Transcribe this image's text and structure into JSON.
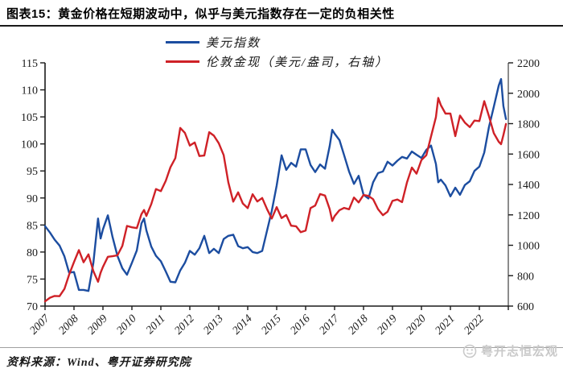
{
  "header": {
    "title": "图表15：黄金价格在短期波动中，似乎与美元指数存在一定的负相关性"
  },
  "footer": {
    "source": "资料来源：Wind、粤开证券研究院"
  },
  "watermark": {
    "text": "粤开志恒宏观"
  },
  "colors": {
    "dxy_blue": "#1c4da0",
    "gold_red": "#cf2127",
    "axis_black": "#1a1a1a",
    "watermark_gray": "#c9c9c9"
  },
  "chart_data": {
    "type": "line",
    "title": "图表15：黄金价格在短期波动中，似乎与美元指数存在一定的负相关性",
    "grid": false,
    "legend_position": "top",
    "x_range": [
      2007,
      2023
    ],
    "x_ticks": [
      2007,
      2008,
      2009,
      2010,
      2011,
      2012,
      2013,
      2014,
      2015,
      2016,
      2017,
      2018,
      2019,
      2020,
      2021,
      2022
    ],
    "x_tick_labels": [
      "2007",
      "2008",
      "2009",
      "2010",
      "2011",
      "2012",
      "2013",
      "2014",
      "2015",
      "2016",
      "2017",
      "2018",
      "2019",
      "2020",
      "2021",
      "2022"
    ],
    "left_axis": {
      "min": 70,
      "max": 115,
      "step": 5,
      "ticks": [
        70,
        75,
        80,
        85,
        90,
        95,
        100,
        105,
        110,
        115
      ]
    },
    "right_axis": {
      "min": 600,
      "max": 2200,
      "step": 200,
      "ticks": [
        600,
        800,
        1000,
        1200,
        1400,
        1600,
        1800,
        2000,
        2200
      ]
    },
    "x": [
      2007,
      2007.17,
      2007.33,
      2007.5,
      2007.67,
      2007.83,
      2008,
      2008.17,
      2008.33,
      2008.5,
      2008.67,
      2008.83,
      2008.92,
      2009,
      2009.17,
      2009.33,
      2009.5,
      2009.67,
      2009.83,
      2010,
      2010.17,
      2010.33,
      2010.42,
      2010.5,
      2010.67,
      2010.83,
      2011,
      2011.17,
      2011.33,
      2011.5,
      2011.67,
      2011.83,
      2012,
      2012.17,
      2012.33,
      2012.5,
      2012.67,
      2012.83,
      2013,
      2013.17,
      2013.33,
      2013.5,
      2013.67,
      2013.83,
      2014,
      2014.17,
      2014.33,
      2014.5,
      2014.67,
      2014.83,
      2015,
      2015.17,
      2015.33,
      2015.5,
      2015.67,
      2015.83,
      2016,
      2016.17,
      2016.33,
      2016.5,
      2016.67,
      2016.83,
      2016.92,
      2017,
      2017.17,
      2017.33,
      2017.5,
      2017.67,
      2017.83,
      2018,
      2018.17,
      2018.33,
      2018.5,
      2018.67,
      2018.83,
      2019,
      2019.17,
      2019.33,
      2019.5,
      2019.67,
      2019.83,
      2020,
      2020.17,
      2020.33,
      2020.5,
      2020.58,
      2020.67,
      2020.83,
      2021,
      2021.17,
      2021.33,
      2021.5,
      2021.67,
      2021.83,
      2022,
      2022.17,
      2022.33,
      2022.5,
      2022.67,
      2022.75,
      2022.83,
      2022.92
    ],
    "series": [
      {
        "name": "美元指数",
        "axis": "left",
        "color": "#1c4da0",
        "values": [
          84.8,
          83.6,
          82.3,
          81.2,
          79.2,
          76.2,
          76.3,
          73.0,
          73.0,
          72.8,
          78.0,
          86.2,
          82.5,
          84.2,
          86.8,
          82.8,
          79.3,
          77.0,
          75.8,
          78.0,
          80.3,
          85.3,
          86.2,
          84.0,
          81.0,
          79.3,
          78.3,
          76.4,
          74.5,
          74.4,
          76.6,
          78.0,
          80.2,
          79.5,
          80.7,
          83.0,
          79.8,
          80.6,
          79.8,
          82.4,
          83.0,
          83.2,
          81.1,
          80.7,
          80.9,
          80.0,
          79.8,
          80.2,
          84.0,
          87.6,
          92.3,
          97.9,
          95.2,
          96.5,
          95.8,
          99.0,
          99.0,
          96.1,
          94.8,
          96.2,
          95.4,
          99.6,
          102.6,
          101.9,
          100.7,
          97.9,
          94.9,
          92.6,
          94.1,
          90.6,
          89.9,
          92.9,
          94.6,
          94.9,
          96.7,
          96.0,
          96.9,
          97.6,
          97.3,
          98.6,
          98.0,
          97.4,
          98.9,
          99.7,
          96.3,
          92.9,
          93.4,
          92.3,
          90.3,
          91.9,
          90.6,
          92.4,
          93.1,
          95.0,
          95.8,
          98.4,
          103.1,
          106.9,
          110.8,
          112.0,
          107.0,
          104.6
        ]
      },
      {
        "name": "伦敦金现（美元/盎司，右轴）",
        "axis": "right",
        "color": "#cf2127",
        "values": [
          631,
          655,
          667,
          665,
          713,
          806,
          890,
          968,
          888,
          940,
          830,
          760,
          820,
          858,
          924,
          928,
          934,
          996,
          1127,
          1118,
          1113,
          1205,
          1232,
          1193,
          1271,
          1370,
          1356,
          1424,
          1513,
          1573,
          1772,
          1739,
          1656,
          1676,
          1587,
          1590,
          1744,
          1721,
          1671,
          1593,
          1414,
          1287,
          1348,
          1275,
          1244,
          1336,
          1288,
          1311,
          1237,
          1176,
          1251,
          1179,
          1199,
          1129,
          1125,
          1086,
          1097,
          1245,
          1261,
          1337,
          1327,
          1238,
          1160,
          1192,
          1231,
          1246,
          1237,
          1314,
          1282,
          1331,
          1325,
          1303,
          1238,
          1198,
          1221,
          1292,
          1301,
          1284,
          1413,
          1511,
          1471,
          1561,
          1593,
          1716,
          1843,
          1969,
          1922,
          1866,
          1867,
          1718,
          1853,
          1807,
          1777,
          1820,
          1817,
          1948,
          1850,
          1737,
          1681,
          1665,
          1725,
          1798
        ]
      }
    ]
  }
}
